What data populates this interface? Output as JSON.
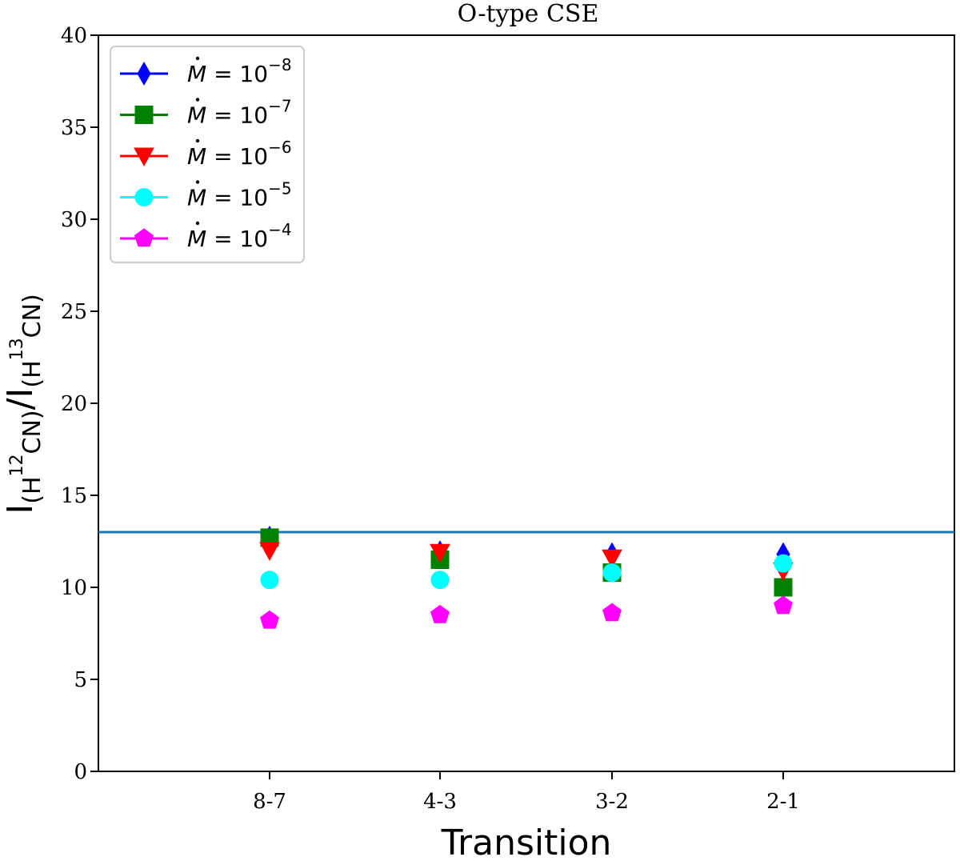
{
  "chart_data": {
    "type": "scatter",
    "title": "O-type CSE",
    "xlabel": "Transition",
    "ylabel_main": "I",
    "ylabel_num_sub_pre": "(H",
    "ylabel_num_sup": "12",
    "ylabel_num_sub_post": "CN)",
    "ylabel_sep": "/I",
    "ylabel_den_sub_pre": "(H",
    "ylabel_den_sup": "13",
    "ylabel_den_sub_post": "CN)",
    "categories": [
      "8-7",
      "4-3",
      "3-2",
      "2-1"
    ],
    "ylim": [
      0,
      40
    ],
    "yticks": [
      "0",
      "5",
      "10",
      "15",
      "20",
      "25",
      "30",
      "35",
      "40"
    ],
    "reference_line": {
      "y": 13,
      "color": "#1f77b4"
    },
    "legend_position": "upper-left",
    "legend_mdot_symbol": "M",
    "legend_eq": " = 10",
    "series": [
      {
        "exponent": "−8",
        "color": "#0000ff",
        "marker": "thin-diamond",
        "values": [
          12.7,
          11.9,
          11.8,
          11.8
        ]
      },
      {
        "exponent": "−7",
        "color": "#008000",
        "marker": "square",
        "values": [
          12.7,
          11.5,
          10.8,
          10.0
        ]
      },
      {
        "exponent": "−6",
        "color": "#ff0000",
        "marker": "triangle-down",
        "values": [
          12.0,
          11.9,
          11.6,
          10.9
        ]
      },
      {
        "exponent": "−5",
        "color": "#00ffff",
        "marker": "circle",
        "values": [
          10.4,
          10.4,
          10.8,
          11.3
        ]
      },
      {
        "exponent": "−4",
        "color": "#ff00ff",
        "marker": "pentagon",
        "values": [
          8.2,
          8.5,
          8.6,
          9.0
        ]
      }
    ]
  }
}
